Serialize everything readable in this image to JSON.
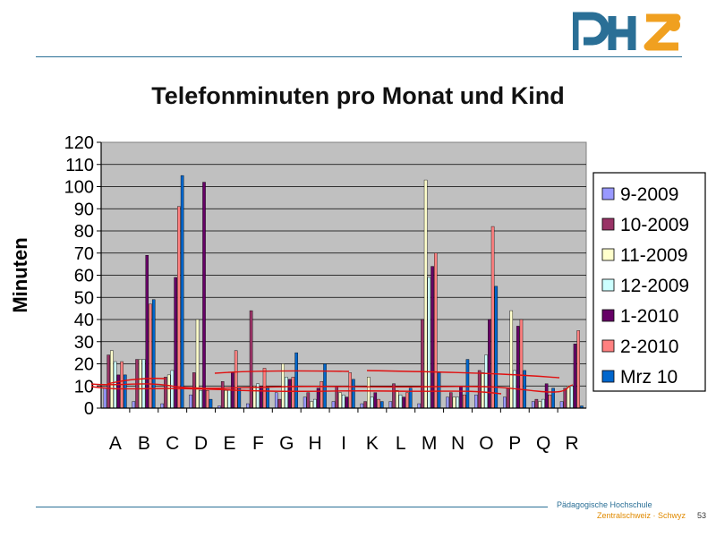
{
  "slide": {
    "logo_text": "PHZ",
    "footer_line1": "Pädagogische Hochschule",
    "footer_line2": "Zentralschweiz · Schwyz",
    "page_number": "53"
  },
  "chart_data": {
    "type": "bar",
    "title": "Telefonminuten pro Monat und Kind",
    "xlabel": "",
    "ylabel": "Minuten",
    "ylim": [
      0,
      120
    ],
    "yticks": [
      0,
      10,
      20,
      30,
      40,
      50,
      60,
      70,
      80,
      90,
      100,
      110,
      120
    ],
    "grid": true,
    "legend_position": "right",
    "categories": [
      "A",
      "B",
      "C",
      "D",
      "E",
      "F",
      "G",
      "H",
      "I",
      "K",
      "L",
      "M",
      "N",
      "O",
      "P",
      "Q",
      "R"
    ],
    "series": [
      {
        "name": "9-2009",
        "color": "#9999ff",
        "values": [
          9,
          3,
          2,
          6,
          1,
          2,
          7,
          5,
          3,
          2,
          3,
          2,
          5,
          6,
          5,
          3,
          3
        ]
      },
      {
        "name": "10-2009",
        "color": "#993366",
        "values": [
          24,
          22,
          14,
          16,
          12,
          44,
          4,
          7,
          10,
          3,
          11,
          40,
          7,
          17,
          9,
          4,
          9
        ]
      },
      {
        "name": "11-2009",
        "color": "#ffffcc",
        "values": [
          26,
          22,
          15,
          40,
          8,
          10,
          20,
          3,
          7,
          14,
          8,
          103,
          5,
          16,
          44,
          3,
          10
        ]
      },
      {
        "name": "12-2009",
        "color": "#ccffff",
        "values": [
          21,
          22,
          17,
          8,
          8,
          11,
          14,
          4,
          6,
          5,
          6,
          59,
          5,
          24,
          17,
          4,
          10
        ]
      },
      {
        "name": "1-2010",
        "color": "#660066",
        "values": [
          15,
          69,
          59,
          102,
          16,
          10,
          13,
          9,
          5,
          7,
          5,
          64,
          10,
          40,
          37,
          11,
          29
        ]
      },
      {
        "name": "2-2010",
        "color": "#ff8080",
        "values": [
          21,
          47,
          91,
          8,
          26,
          18,
          14,
          12,
          16,
          4,
          7,
          70,
          6,
          82,
          40,
          6,
          35
        ]
      },
      {
        "name": "Mrz 10",
        "color": "#0066cc",
        "values": [
          15,
          49,
          105,
          4,
          9,
          9,
          25,
          20,
          13,
          3,
          9,
          16,
          22,
          55,
          17,
          9,
          1
        ]
      }
    ],
    "annotations": "hand-drawn red trend lines over the bars"
  }
}
